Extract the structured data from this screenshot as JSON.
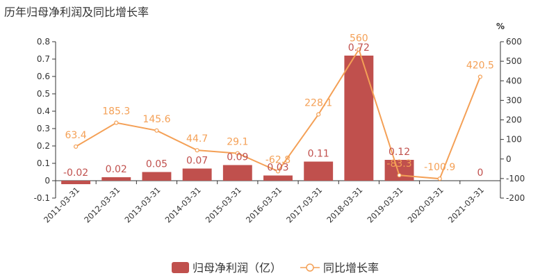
{
  "title": "历年归母净利润及同比增长率",
  "chart_data": {
    "type": "bar",
    "title": "历年归母净利润及同比增长率",
    "categories": [
      "2011-03-31",
      "2012-03-31",
      "2013-03-31",
      "2014-03-31",
      "2015-03-31",
      "2016-03-31",
      "2017-03-31",
      "2018-03-31",
      "2019-03-31",
      "2020-03-31",
      "2021-03-31"
    ],
    "series": [
      {
        "name": "归母净利润（亿）",
        "type": "bar",
        "axis": "left",
        "color": "#c0504d",
        "values": [
          -0.02,
          0.02,
          0.05,
          0.07,
          0.09,
          0.03,
          0.11,
          0.72,
          0.12,
          0,
          0
        ],
        "labels": [
          "-0.02",
          "0.02",
          "0.05",
          "0.07",
          "0.09",
          "0.03",
          "0.11",
          "0.72",
          "0.12",
          "0",
          "0"
        ]
      },
      {
        "name": "同比增长率",
        "type": "line",
        "axis": "right",
        "color": "#f4a056",
        "values": [
          63.4,
          185.3,
          145.6,
          44.7,
          29.1,
          -62.8,
          228.1,
          560,
          -83.3,
          -100.9,
          420.5
        ],
        "labels": [
          "63.4",
          "185.3",
          "145.6",
          "44.7",
          "29.1",
          "-62.8",
          "228.1",
          "560",
          "-83.3",
          "-100.9",
          "420.5"
        ]
      }
    ],
    "bar_label_present": [
      true,
      true,
      true,
      true,
      true,
      true,
      true,
      true,
      true,
      false,
      true
    ],
    "left_axis": {
      "ylim": [
        -0.1,
        0.8
      ],
      "ticks": [
        "-0.1",
        "0",
        "0.1",
        "0.2",
        "0.3",
        "0.4",
        "0.5",
        "0.6",
        "0.7",
        "0.8"
      ]
    },
    "right_axis": {
      "ylim": [
        -200,
        600
      ],
      "unit": "%",
      "ticks": [
        "-200",
        "-100",
        "0",
        "100",
        "200",
        "300",
        "400",
        "500",
        "600"
      ]
    },
    "legend_position": "bottom",
    "grid": false
  }
}
